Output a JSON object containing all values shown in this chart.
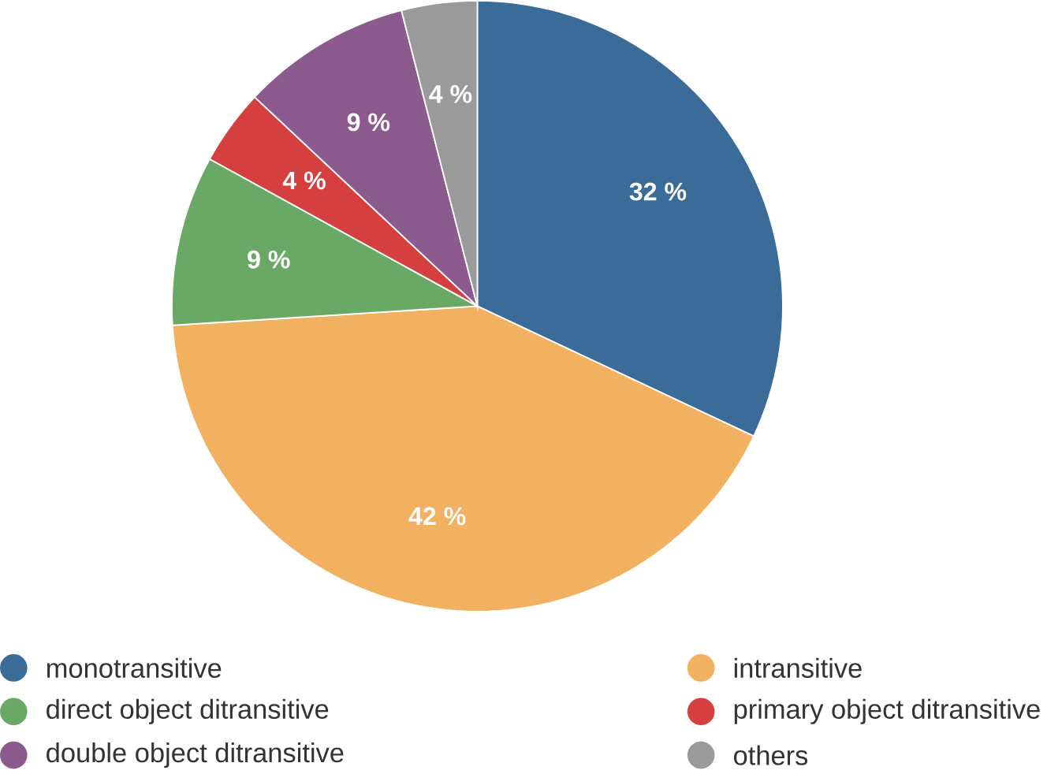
{
  "chart_data": {
    "type": "pie",
    "categories": [
      "monotransitive",
      "intransitive",
      "direct object ditransitive",
      "primary object ditransitive",
      "double object ditransitive",
      "others"
    ],
    "values": [
      32,
      42,
      9,
      4,
      9,
      4
    ],
    "colors": [
      "#3b6b99",
      "#f2b061",
      "#69a965",
      "#d63f3f",
      "#8c5a8c",
      "#9a9a9a"
    ],
    "value_labels": [
      "32 %",
      "42 %",
      "9 %",
      "4 %",
      "9 %",
      "4 %"
    ],
    "legend": "bottom"
  }
}
